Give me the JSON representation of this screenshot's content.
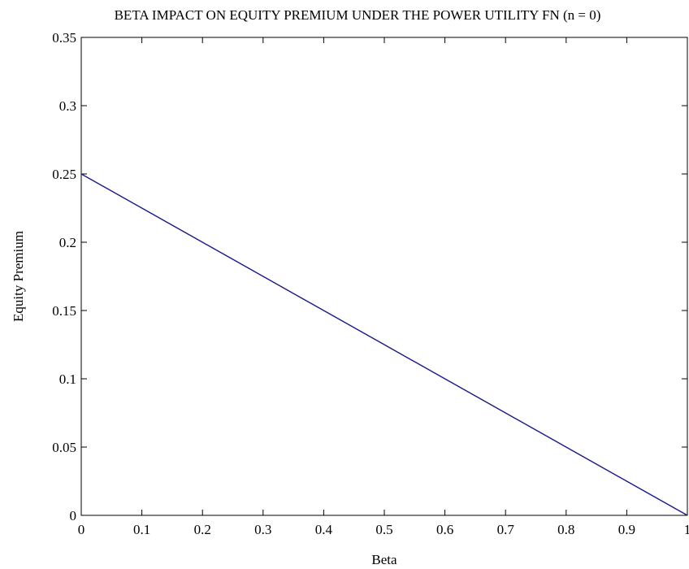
{
  "chart_data": {
    "type": "line",
    "title": "BETA IMPACT ON EQUITY PREMIUM UNDER THE POWER UTILITY FN (n = 0)",
    "xlabel": "Beta",
    "ylabel": "Equity Premium",
    "xlim": [
      0,
      1
    ],
    "ylim": [
      0,
      0.35
    ],
    "xticks": [
      "0",
      "0.1",
      "0.2",
      "0.3",
      "0.4",
      "0.5",
      "0.6",
      "0.7",
      "0.8",
      "0.9",
      "1"
    ],
    "yticks": [
      "0",
      "0.05",
      "0.1",
      "0.15",
      "0.2",
      "0.25",
      "0.3",
      "0.35"
    ],
    "grid": false,
    "series": [
      {
        "color": "#1a1a8c",
        "x": [
          0,
          0.1,
          0.2,
          0.3,
          0.4,
          0.5,
          0.6,
          0.7,
          0.8,
          0.9,
          1
        ],
        "y": [
          0.25,
          0.225,
          0.2,
          0.175,
          0.15,
          0.125,
          0.1,
          0.075,
          0.05,
          0.025,
          0
        ]
      }
    ]
  }
}
